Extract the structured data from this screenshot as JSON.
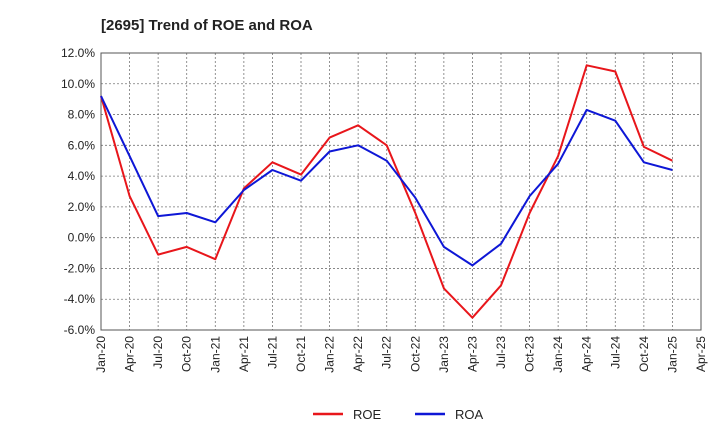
{
  "chart_data": {
    "type": "line",
    "title": "[2695]  Trend of ROE and ROA",
    "xlabel": "",
    "ylabel": "",
    "x": [
      "Jan-20",
      "Apr-20",
      "Jul-20",
      "Oct-20",
      "Jan-21",
      "Apr-21",
      "Jul-21",
      "Oct-21",
      "Jan-22",
      "Apr-22",
      "Jul-22",
      "Oct-22",
      "Jan-23",
      "Apr-23",
      "Jul-23",
      "Oct-23",
      "Jan-24",
      "Apr-24",
      "Jul-24",
      "Oct-24",
      "Jan-25",
      "Apr-25"
    ],
    "ylim": [
      -6.0,
      12.0
    ],
    "yticks": [
      "-6.0%",
      "-4.0%",
      "-2.0%",
      "0.0%",
      "2.0%",
      "4.0%",
      "6.0%",
      "8.0%",
      "10.0%",
      "12.0%"
    ],
    "grid": true,
    "legend_position": "bottom",
    "series": [
      {
        "name": "ROE",
        "color": "#e8161b",
        "values": [
          9.2,
          2.7,
          -1.1,
          -0.6,
          -1.4,
          3.2,
          4.9,
          4.1,
          6.5,
          7.3,
          6.0,
          1.6,
          -3.3,
          -5.2,
          -3.1,
          1.6,
          5.3,
          11.2,
          10.8,
          5.9,
          5.0,
          null
        ]
      },
      {
        "name": "ROA",
        "color": "#0e17d6",
        "values": [
          9.2,
          5.3,
          1.4,
          1.6,
          1.0,
          3.1,
          4.4,
          3.7,
          5.6,
          6.0,
          5.0,
          2.6,
          -0.6,
          -1.8,
          -0.4,
          2.7,
          4.8,
          8.3,
          7.6,
          4.9,
          4.4,
          null
        ]
      }
    ]
  }
}
